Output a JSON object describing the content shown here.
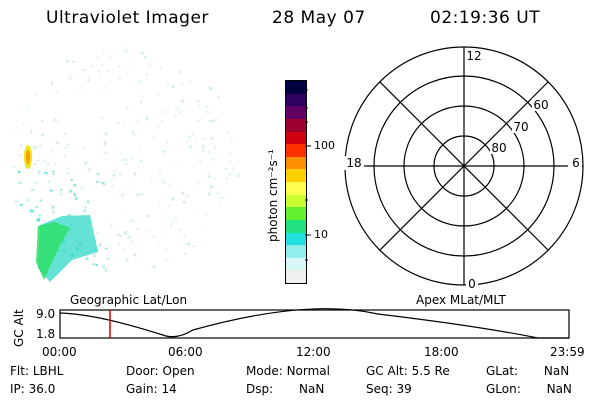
{
  "header": {
    "instrument": "Ultraviolet Imager",
    "date": "28 May 07",
    "time": "02:19:36 UT"
  },
  "colorbar": {
    "unit_label": "photon cm⁻²s⁻¹",
    "ticks": [
      "100",
      "10"
    ],
    "colors": [
      "#000040",
      "#300060",
      "#600060",
      "#a00030",
      "#d00010",
      "#ff3000",
      "#ff9000",
      "#ffd000",
      "#ffff50",
      "#c8ff30",
      "#60f030",
      "#20e080",
      "#20e0e0",
      "#90f0f0",
      "#d8f8f8",
      "#f0f0f0"
    ]
  },
  "polar_grid": {
    "mlt_labels": {
      "top": "12",
      "left": "18",
      "right": "6",
      "bottom": "0"
    },
    "lat_labels": [
      "60",
      "70",
      "80"
    ]
  },
  "timeline": {
    "left_label": "Geographic Lat/Lon",
    "right_label": "Apex MLat/MLT",
    "axis_title": "GC Alt",
    "y_ticks": [
      "9.0",
      "1.8"
    ],
    "x_ticks": [
      "00:00",
      "06:00",
      "12:00",
      "18:00",
      "23:59"
    ],
    "current_time_marker_color": "#d00000"
  },
  "status": {
    "row1": [
      {
        "label": "Flt:",
        "value": "LBHL"
      },
      {
        "label": "Door:",
        "value": "Open"
      },
      {
        "label": "Mode:",
        "value": "Normal"
      },
      {
        "label": "GC Alt:",
        "value": "5.5 Re"
      },
      {
        "label": "GLat:",
        "value": "NaN"
      }
    ],
    "row2": [
      {
        "label": "IP:",
        "value": "36.0"
      },
      {
        "label": "Gain:",
        "value": "14"
      },
      {
        "label": "Dsp:",
        "value": "NaN"
      },
      {
        "label": "Seq:",
        "value": "39"
      },
      {
        "label": "GLon:",
        "value": "NaN"
      }
    ]
  }
}
